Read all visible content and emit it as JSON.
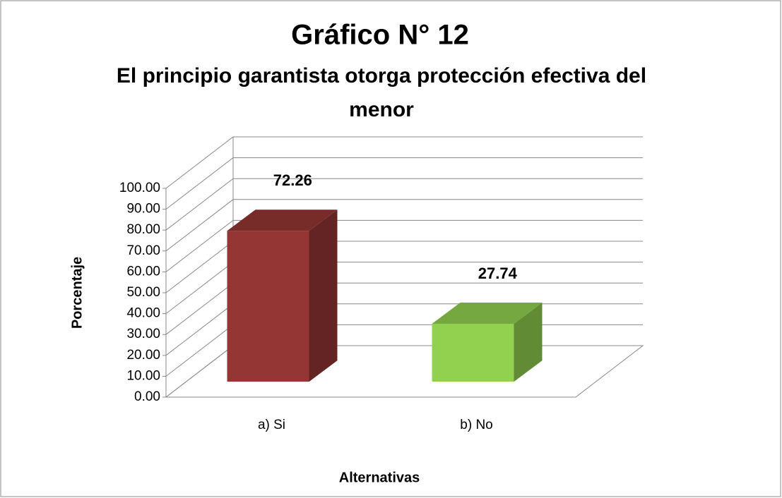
{
  "chart_data": {
    "type": "bar3d",
    "title": "Gráfico N° 12",
    "subtitle": "El principio garantista otorga protección efectiva del menor",
    "x_label": "Alternativas",
    "y_label": "Porcentaje",
    "categories": [
      "a) Si",
      "b) No"
    ],
    "values": [
      72.26,
      27.74
    ],
    "colors": [
      "#943634",
      "#92d050"
    ],
    "ylim": [
      0,
      100
    ],
    "yticks": [
      {
        "value": 0,
        "label": "0.00"
      },
      {
        "value": 10,
        "label": "10.00"
      },
      {
        "value": 20,
        "label": "20.00"
      },
      {
        "value": 30,
        "label": "30.00"
      },
      {
        "value": 40,
        "label": "40.00"
      },
      {
        "value": 50,
        "label": "50.00"
      },
      {
        "value": 60,
        "label": "60.00"
      },
      {
        "value": 70,
        "label": "70.00"
      },
      {
        "value": 80,
        "label": "80.00"
      },
      {
        "value": 90,
        "label": "90.00"
      },
      {
        "value": 100,
        "label": "100.00"
      }
    ],
    "grid": true
  }
}
